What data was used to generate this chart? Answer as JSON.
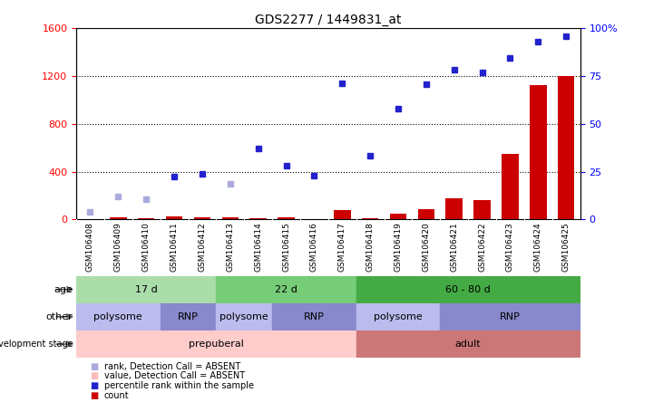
{
  "title": "GDS2277 / 1449831_at",
  "samples": [
    "GSM106408",
    "GSM106409",
    "GSM106410",
    "GSM106411",
    "GSM106412",
    "GSM106413",
    "GSM106414",
    "GSM106415",
    "GSM106416",
    "GSM106417",
    "GSM106418",
    "GSM106419",
    "GSM106420",
    "GSM106421",
    "GSM106422",
    "GSM106423",
    "GSM106424",
    "GSM106425"
  ],
  "count_values": [
    5,
    15,
    10,
    25,
    20,
    15,
    10,
    20,
    5,
    80,
    10,
    50,
    90,
    180,
    160,
    550,
    1120,
    1200
  ],
  "rank_values": [
    60,
    190,
    170,
    360,
    380,
    300,
    590,
    450,
    370,
    1140,
    530,
    930,
    1130,
    1250,
    1230,
    1350,
    1490,
    1530
  ],
  "rank_absent": [
    true,
    true,
    true,
    false,
    false,
    true,
    false,
    false,
    false,
    false,
    false,
    false,
    false,
    false,
    false,
    false,
    false,
    false
  ],
  "ylim_left": [
    0,
    1600
  ],
  "ylim_right": [
    0,
    100
  ],
  "yticks_left": [
    0,
    400,
    800,
    1200,
    1600
  ],
  "yticks_right": [
    0,
    25,
    50,
    75,
    100
  ],
  "ytick_right_labels": [
    "0",
    "25",
    "50",
    "75",
    "100%"
  ],
  "count_color": "#cc0000",
  "rank_color_present": "#2222cc",
  "rank_color_absent": "#aaaadd",
  "age_groups": [
    {
      "label": "17 d",
      "start": 0,
      "end": 5,
      "color": "#aaddaa"
    },
    {
      "label": "22 d",
      "start": 5,
      "end": 10,
      "color": "#77cc77"
    },
    {
      "label": "60 - 80 d",
      "start": 10,
      "end": 18,
      "color": "#44aa44"
    }
  ],
  "other_groups": [
    {
      "label": "polysome",
      "start": 0,
      "end": 3,
      "color": "#bbbbee"
    },
    {
      "label": "RNP",
      "start": 3,
      "end": 5,
      "color": "#8888cc"
    },
    {
      "label": "polysome",
      "start": 5,
      "end": 7,
      "color": "#bbbbee"
    },
    {
      "label": "RNP",
      "start": 7,
      "end": 10,
      "color": "#8888cc"
    },
    {
      "label": "polysome",
      "start": 10,
      "end": 13,
      "color": "#bbbbee"
    },
    {
      "label": "RNP",
      "start": 13,
      "end": 18,
      "color": "#8888cc"
    }
  ],
  "dev_groups": [
    {
      "label": "prepuberal",
      "start": 0,
      "end": 10,
      "color": "#ffcccc"
    },
    {
      "label": "adult",
      "start": 10,
      "end": 18,
      "color": "#cc7777"
    }
  ],
  "row_labels": [
    "age",
    "other",
    "development stage"
  ],
  "legend_items": [
    {
      "color": "#cc0000",
      "label": "count"
    },
    {
      "color": "#2222cc",
      "label": "percentile rank within the sample"
    },
    {
      "color": "#ffbbbb",
      "label": "value, Detection Call = ABSENT"
    },
    {
      "color": "#aaaadd",
      "label": "rank, Detection Call = ABSENT"
    }
  ],
  "grid_yticks": [
    400,
    800,
    1200
  ],
  "xticklabel_bg": "#dddddd"
}
